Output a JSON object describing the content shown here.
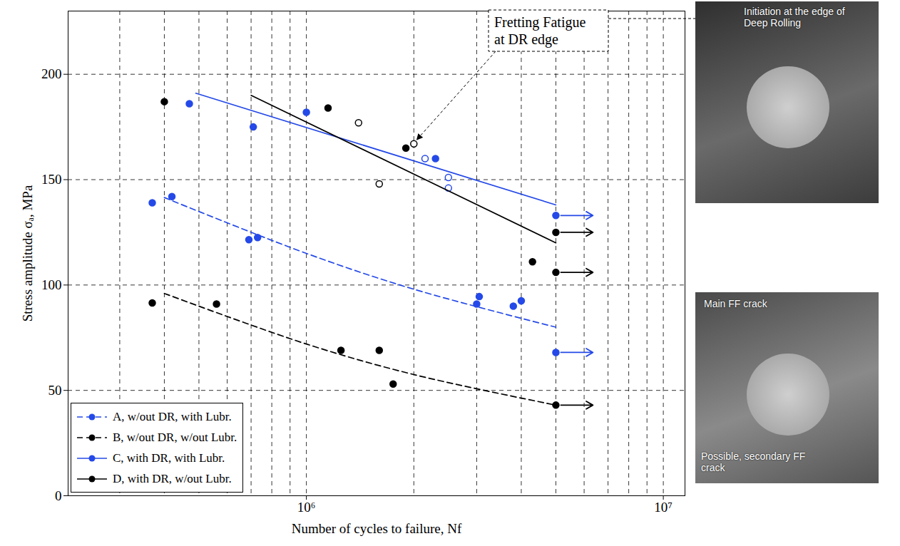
{
  "chart_data": {
    "type": "scatter",
    "xlabel": "Number of cycles to failure, Nf",
    "ylabel": "Stress amplitude σₐ, MPa",
    "log": "x",
    "grid": true,
    "legend": "lower left",
    "xlim": [
      215000,
      11500000
    ],
    "xticks": [
      {
        "value": 1000000,
        "label": "10⁶"
      },
      {
        "value": 10000000,
        "label": "10⁷"
      }
    ],
    "ylim": [
      0,
      230
    ],
    "yticks": [
      0,
      50,
      100,
      150,
      200
    ],
    "series": [
      {
        "name": "A, w/out DR, with Lubr.",
        "color": "#2449e8",
        "line_style": "dashed",
        "marker": "o",
        "x": [
          370000,
          420000,
          690000,
          730000,
          3000000,
          3050000,
          3800000,
          4000000
        ],
        "values": [
          139,
          142,
          121.5,
          122.5,
          91,
          94.5,
          90,
          92.5
        ],
        "runout_x": [
          5000000
        ],
        "runout_values": [
          68
        ],
        "fit_x": [
          400000,
          1000000,
          2000000,
          5000000
        ],
        "fit_values": [
          141.5,
          115,
          98,
          80
        ]
      },
      {
        "name": "B, w/out DR, w/out Lubr.",
        "color": "#000000",
        "line_style": "dashed",
        "marker": "o",
        "x": [
          370000,
          560000,
          1250000,
          1600000,
          1750000
        ],
        "values": [
          91.5,
          91,
          69,
          69,
          53
        ],
        "runout_x": [
          5000000
        ],
        "runout_values": [
          43
        ],
        "fit_x": [
          400000,
          1000000,
          2000000,
          5000000
        ],
        "fit_values": [
          96,
          72,
          57.5,
          43
        ]
      },
      {
        "name": "C, with DR, with Lubr.",
        "color": "#2449e8",
        "line_style": "solid",
        "marker": "o",
        "x": [
          470000,
          710000,
          1000000,
          2300000
        ],
        "values": [
          186,
          175,
          182,
          160
        ],
        "open_x": [
          2150000,
          2500000,
          2500000
        ],
        "open_values": [
          160,
          151,
          146
        ],
        "runout_x": [
          5000000
        ],
        "runout_values": [
          133
        ],
        "fit_x": [
          490000,
          5000000
        ],
        "fit_values": [
          191,
          138
        ]
      },
      {
        "name": "D, with DR, w/out Lubr.",
        "color": "#000000",
        "line_style": "solid",
        "marker": "o",
        "x": [
          400000,
          1150000,
          1900000,
          4300000
        ],
        "values": [
          187,
          184,
          165,
          111
        ],
        "open_x": [
          1400000,
          2000000,
          1600000
        ],
        "open_values": [
          177,
          167,
          148
        ],
        "runout_x": [
          5000000,
          5000000
        ],
        "runout_values": [
          125,
          106
        ],
        "fit_x": [
          700000,
          5000000
        ],
        "fit_values": [
          190,
          120
        ]
      }
    ],
    "annotation": {
      "text": "Fretting Fatigue at DR edge",
      "points_to": {
        "x": 2000000,
        "y": 167
      }
    },
    "photos": [
      {
        "labels": [
          "Initiation at the edge of Deep Rolling"
        ]
      },
      {
        "labels": [
          "Main FF crack",
          "Possible, secondary FF crack"
        ]
      }
    ]
  }
}
